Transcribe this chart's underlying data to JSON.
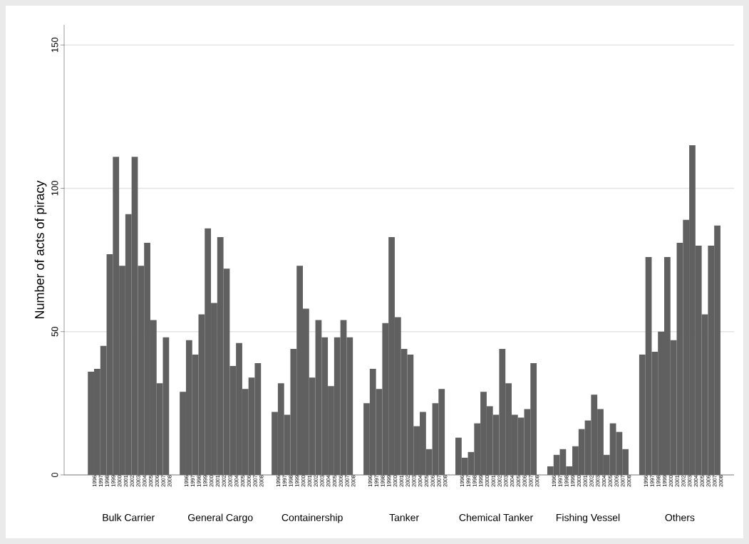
{
  "chart_data": {
    "type": "bar",
    "ylabel": "Number of acts of piracy",
    "categories": [
      "Bulk Carrier",
      "General Cargo",
      "Containership",
      "Tanker",
      "Chemical Tanker",
      "Fishing Vessel",
      "Others"
    ],
    "series": [
      {
        "name": "1996",
        "color": "#606060",
        "values": [
          36,
          29,
          22,
          25,
          13,
          3,
          42
        ]
      },
      {
        "name": "1997",
        "color": "#606060",
        "values": [
          37,
          47,
          32,
          37,
          6,
          7,
          76
        ]
      },
      {
        "name": "1998",
        "color": "#606060",
        "values": [
          45,
          42,
          21,
          30,
          8,
          9,
          43
        ]
      },
      {
        "name": "1999",
        "color": "#606060",
        "values": [
          77,
          56,
          44,
          53,
          18,
          3,
          50
        ]
      },
      {
        "name": "2000",
        "color": "#606060",
        "values": [
          111,
          86,
          73,
          83,
          29,
          10,
          76
        ]
      },
      {
        "name": "2001",
        "color": "#606060",
        "values": [
          73,
          60,
          58,
          55,
          24,
          16,
          47
        ]
      },
      {
        "name": "2002",
        "color": "#606060",
        "values": [
          91,
          83,
          34,
          44,
          21,
          19,
          81
        ]
      },
      {
        "name": "2003",
        "color": "#606060",
        "values": [
          111,
          72,
          54,
          42,
          44,
          28,
          89
        ]
      },
      {
        "name": "2004",
        "color": "#606060",
        "values": [
          73,
          38,
          48,
          17,
          32,
          23,
          115
        ]
      },
      {
        "name": "2005",
        "color": "#606060",
        "values": [
          81,
          46,
          31,
          22,
          21,
          7,
          80
        ]
      },
      {
        "name": "2006",
        "color": "#606060",
        "values": [
          54,
          30,
          48,
          9,
          20,
          18,
          56
        ]
      },
      {
        "name": "2007",
        "color": "#606060",
        "values": [
          32,
          34,
          54,
          25,
          23,
          15,
          80
        ]
      },
      {
        "name": "2008",
        "color": "#606060",
        "values": [
          48,
          39,
          48,
          30,
          39,
          9,
          87
        ]
      }
    ],
    "ylim": [
      0,
      157
    ],
    "yticks": [
      0,
      50,
      100,
      150
    ],
    "grid": "y"
  }
}
